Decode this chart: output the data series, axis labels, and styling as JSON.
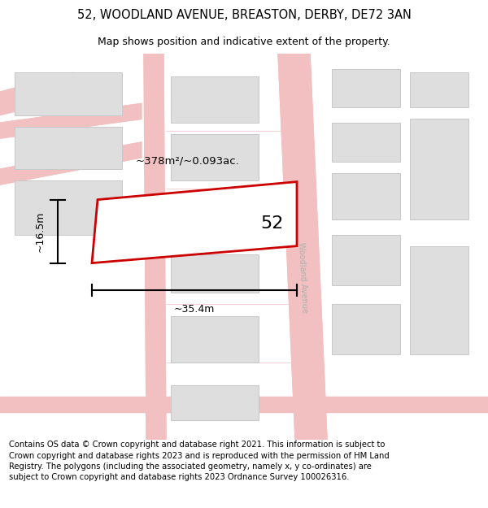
{
  "title_line1": "52, WOODLAND AVENUE, BREASTON, DERBY, DE72 3AN",
  "title_line2": "Map shows position and indicative extent of the property.",
  "footer_text": "Contains OS data © Crown copyright and database right 2021. This information is subject to Crown copyright and database rights 2023 and is reproduced with the permission of HM Land Registry. The polygons (including the associated geometry, namely x, y co-ordinates) are subject to Crown copyright and database rights 2023 Ordnance Survey 100026316.",
  "background_color": "#ffffff",
  "map_bg_color": "#ffffff",
  "road_color": "#f2c0c0",
  "building_fill": "#dedede",
  "building_edge_color": "#c8c8c8",
  "highlight_fill": "#ffffff",
  "highlight_edge_color": "#cc0000",
  "road_label": "Woodland Avenue",
  "property_label": "52",
  "area_label": "~378m²/~0.093ac.",
  "width_label": "~35.4m",
  "height_label": "~16.5m",
  "title_fontsize": 10.5,
  "subtitle_fontsize": 9,
  "footer_fontsize": 7.2
}
